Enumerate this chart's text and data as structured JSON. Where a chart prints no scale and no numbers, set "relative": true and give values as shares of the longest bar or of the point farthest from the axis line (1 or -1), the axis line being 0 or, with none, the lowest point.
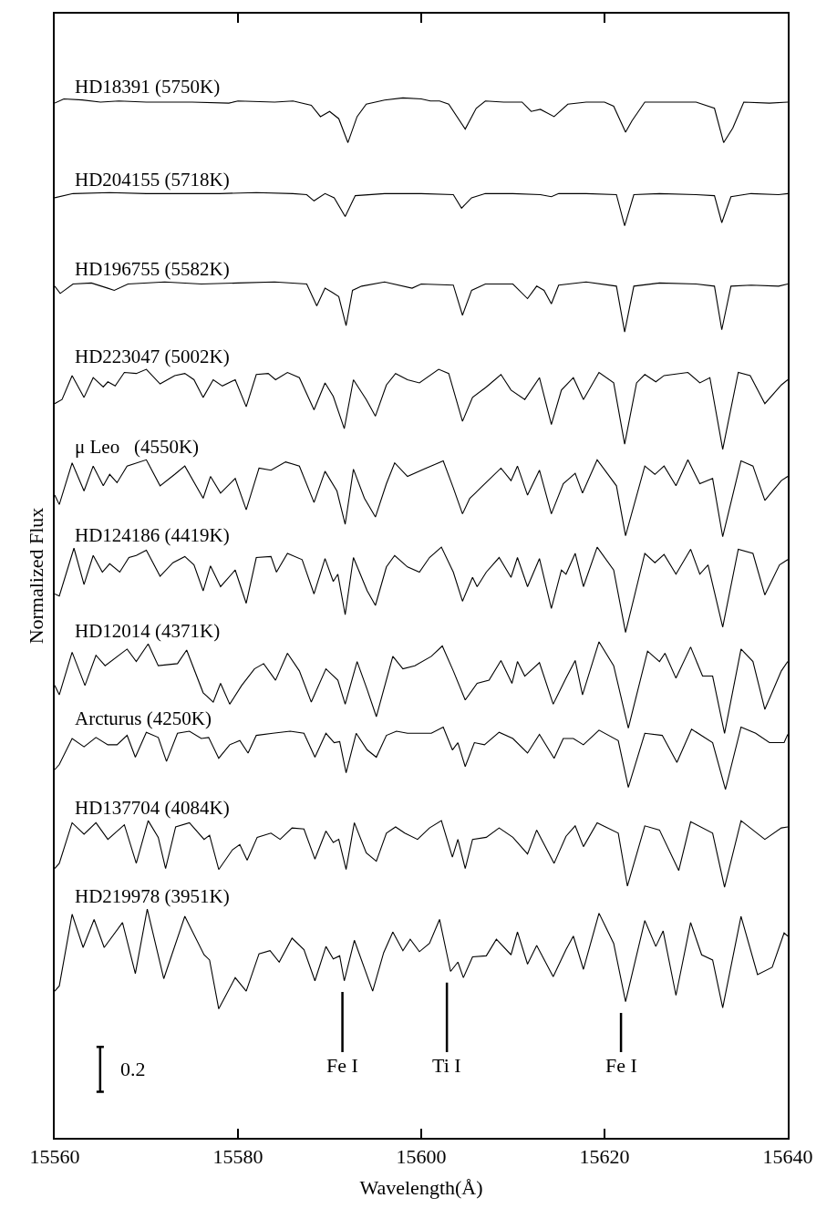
{
  "chart_data": {
    "type": "line",
    "relative": true,
    "xlabel": "Wavelength(Å)",
    "ylabel": "Normalized Flux",
    "xlim": [
      15560,
      15640
    ],
    "xticks": [
      15560,
      15580,
      15600,
      15620,
      15640
    ],
    "tick_labels": "x",
    "legend": false,
    "annotations": [
      "0.2"
    ],
    "ref_lines": [
      {
        "axis": "x",
        "value": 15591.4,
        "label": "Fe I"
      },
      {
        "axis": "x",
        "value": 15602.8,
        "label": "Ti I"
      },
      {
        "axis": "x",
        "value": 15621.8,
        "label": "Fe I"
      }
    ],
    "series": [
      {
        "name": "HD18391 (5750K)",
        "color": "#000000",
        "x": [
          15560,
          15561,
          15563,
          15565,
          15567,
          15570,
          15573,
          15575,
          15579,
          15580,
          15584,
          15586,
          15588,
          15589,
          15590,
          15591,
          15592,
          15593,
          15594,
          15596,
          15598,
          15600,
          15601,
          15602,
          15603,
          15604.8,
          15606,
          15607,
          15609,
          15611,
          15612,
          15613,
          15614.5,
          15616,
          15618,
          15620,
          15621,
          15622.3,
          15623,
          15624.4,
          15627,
          15630,
          15632,
          15633,
          15634,
          15635.2,
          15638,
          15640
        ],
        "values": [
          0.995,
          0.999,
          0.998,
          0.996,
          0.997,
          0.996,
          0.996,
          0.996,
          0.995,
          0.997,
          0.996,
          0.997,
          0.993,
          0.982,
          0.987,
          0.98,
          0.957,
          0.982,
          0.994,
          0.998,
          1.0,
          0.999,
          0.997,
          0.997,
          0.994,
          0.97,
          0.99,
          0.997,
          0.996,
          0.996,
          0.987,
          0.989,
          0.982,
          0.994,
          0.996,
          0.996,
          0.992,
          0.967,
          0.978,
          0.996,
          0.996,
          0.996,
          0.99,
          0.957,
          0.971,
          0.996,
          0.995,
          0.996
        ]
      },
      {
        "name": "HD204155 (5718K)",
        "color": "#000000",
        "x": [
          15560,
          15562,
          15566,
          15570,
          15574,
          15578,
          15582,
          15586,
          15587.5,
          15588.3,
          15589.5,
          15590.5,
          15591.7,
          15592.8,
          15596,
          15600,
          15603.5,
          15604.4,
          15605.5,
          15607,
          15610,
          15613,
          15614.2,
          15615,
          15618,
          15621.3,
          15622.2,
          15623.2,
          15626,
          15630,
          15632,
          15632.8,
          15633.8,
          15636,
          15639,
          15640
        ],
        "values": [
          0.904,
          0.908,
          0.909,
          0.908,
          0.908,
          0.908,
          0.909,
          0.908,
          0.907,
          0.901,
          0.908,
          0.904,
          0.886,
          0.906,
          0.908,
          0.908,
          0.907,
          0.894,
          0.904,
          0.908,
          0.908,
          0.907,
          0.905,
          0.908,
          0.908,
          0.907,
          0.877,
          0.907,
          0.908,
          0.907,
          0.906,
          0.88,
          0.905,
          0.908,
          0.907,
          0.908
        ]
      },
      {
        "name": "HD196755 (5582K)",
        "color": "#000000",
        "x": [
          15560,
          15560.6,
          15562,
          15564,
          15565.8,
          15566.5,
          15568,
          15572,
          15576,
          15580,
          15584,
          15587.5,
          15588.6,
          15589.5,
          15590.3,
          15591,
          15591.8,
          15592.5,
          15593.5,
          15596,
          15599,
          15600,
          15603.5,
          15604.5,
          15605.5,
          15607,
          15610,
          15611.6,
          15612.6,
          15613.4,
          15614.2,
          15615,
          15618,
          15621.3,
          15622.2,
          15623.2,
          15626,
          15630,
          15632,
          15632.8,
          15633.8,
          15636,
          15639,
          15640
        ],
        "values": [
          0.819,
          0.812,
          0.821,
          0.822,
          0.817,
          0.815,
          0.821,
          0.823,
          0.821,
          0.822,
          0.823,
          0.821,
          0.8,
          0.817,
          0.813,
          0.809,
          0.781,
          0.815,
          0.819,
          0.823,
          0.817,
          0.821,
          0.82,
          0.791,
          0.815,
          0.821,
          0.821,
          0.807,
          0.819,
          0.815,
          0.802,
          0.82,
          0.823,
          0.819,
          0.775,
          0.819,
          0.822,
          0.821,
          0.819,
          0.777,
          0.819,
          0.82,
          0.819,
          0.821
        ]
      },
      {
        "name": "HD223047 (5002K)",
        "color": "#000000",
        "x": [
          15560,
          15560.8,
          15561.9,
          15563.2,
          15564.2,
          15565.3,
          15565.8,
          15566.6,
          15567.6,
          15568.9,
          15570,
          15571.5,
          15573.1,
          15574.2,
          15575.2,
          15576.2,
          15577.3,
          15578.3,
          15579.7,
          15580.9,
          15582,
          15583.3,
          15584.1,
          15585.4,
          15586.7,
          15588.3,
          15589.5,
          15590.4,
          15591.6,
          15592.6,
          15594,
          15595,
          15596.2,
          15597.2,
          15598.5,
          15599.8,
          15601.9,
          15603,
          15604.5,
          15605.6,
          15607.1,
          15608.7,
          15609.8,
          15611.3,
          15612.9,
          15614.2,
          15615.3,
          15616.6,
          15617.7,
          15619.4,
          15621,
          15622.2,
          15623.5,
          15624.4,
          15625.6,
          15626.5,
          15629.1,
          15630.4,
          15631.5,
          15632.9,
          15634.6,
          15635.9,
          15637.5,
          15639.3,
          15640
        ],
        "values": [
          0.706,
          0.71,
          0.733,
          0.712,
          0.731,
          0.722,
          0.727,
          0.723,
          0.736,
          0.735,
          0.739,
          0.725,
          0.733,
          0.735,
          0.729,
          0.712,
          0.729,
          0.723,
          0.729,
          0.703,
          0.734,
          0.735,
          0.729,
          0.736,
          0.731,
          0.7,
          0.726,
          0.713,
          0.682,
          0.729,
          0.71,
          0.694,
          0.724,
          0.735,
          0.729,
          0.726,
          0.739,
          0.735,
          0.689,
          0.712,
          0.722,
          0.734,
          0.719,
          0.71,
          0.731,
          0.686,
          0.719,
          0.731,
          0.71,
          0.736,
          0.726,
          0.667,
          0.726,
          0.734,
          0.727,
          0.733,
          0.736,
          0.726,
          0.731,
          0.662,
          0.736,
          0.733,
          0.706,
          0.724,
          0.729
        ]
      },
      {
        "name": "μ Leo   (4550K)",
        "color": "#000000",
        "x": [
          15560,
          15560.5,
          15561.9,
          15563.2,
          15564.2,
          15565.3,
          15566,
          15566.8,
          15567.9,
          15570,
          15571.5,
          15573.1,
          15574.2,
          15576.2,
          15577,
          15578.1,
          15579.7,
          15580.9,
          15582.3,
          15583.6,
          15585.2,
          15586.7,
          15588.3,
          15589.5,
          15590.8,
          15591.7,
          15592.6,
          15593.8,
          15595,
          15596.2,
          15597.1,
          15598.5,
          15600.3,
          15602.4,
          15603.5,
          15604.5,
          15605.3,
          15605.9,
          15606.6,
          15608.7,
          15609.8,
          15610.5,
          15611.6,
          15612.9,
          15614.2,
          15615.5,
          15616.8,
          15617.6,
          15619.2,
          15621.3,
          15622.3,
          15624.4,
          15625.5,
          15626.5,
          15627.8,
          15629.1,
          15630.4,
          15631.8,
          15632.9,
          15634.9,
          15636.2,
          15637.5,
          15639.3,
          15640
        ],
        "values": [
          0.618,
          0.609,
          0.649,
          0.622,
          0.646,
          0.627,
          0.638,
          0.63,
          0.646,
          0.652,
          0.627,
          0.638,
          0.646,
          0.615,
          0.636,
          0.62,
          0.634,
          0.604,
          0.644,
          0.642,
          0.65,
          0.646,
          0.611,
          0.641,
          0.622,
          0.59,
          0.643,
          0.615,
          0.597,
          0.629,
          0.649,
          0.636,
          0.643,
          0.651,
          0.625,
          0.6,
          0.615,
          0.62,
          0.626,
          0.644,
          0.632,
          0.646,
          0.618,
          0.642,
          0.6,
          0.629,
          0.639,
          0.62,
          0.652,
          0.627,
          0.579,
          0.646,
          0.638,
          0.646,
          0.627,
          0.652,
          0.629,
          0.634,
          0.578,
          0.651,
          0.646,
          0.613,
          0.632,
          0.636
        ]
      },
      {
        "name": "HD124186 (4419K)",
        "color": "#000000",
        "x": [
          15560,
          15560.5,
          15562.1,
          15563.2,
          15564.2,
          15565.2,
          15566,
          15567.1,
          15568.1,
          15568.9,
          15570,
          15571.5,
          15572.9,
          15574.2,
          15575.2,
          15576.2,
          15577,
          15578.1,
          15579.7,
          15580.9,
          15582,
          15583.6,
          15584.2,
          15585.4,
          15587,
          15588.3,
          15589.5,
          15590.4,
          15590.9,
          15591.7,
          15592.6,
          15594.1,
          15595,
          15596.2,
          15597.1,
          15598.5,
          15599.8,
          15600.9,
          15602.2,
          15603.5,
          15604.5,
          15605.6,
          15606.1,
          15607.1,
          15608.5,
          15609.8,
          15610.5,
          15611.6,
          15612.9,
          15614.2,
          15615.3,
          15615.8,
          15616.8,
          15617.7,
          15619.2,
          15621,
          15622.3,
          15624.4,
          15625.5,
          15626.5,
          15627.8,
          15629.4,
          15630.4,
          15631.3,
          15632.9,
          15634.6,
          15636.2,
          15637.5,
          15639.1,
          15640
        ],
        "values": [
          0.523,
          0.521,
          0.567,
          0.532,
          0.56,
          0.544,
          0.552,
          0.544,
          0.558,
          0.56,
          0.565,
          0.54,
          0.553,
          0.559,
          0.551,
          0.526,
          0.55,
          0.53,
          0.546,
          0.514,
          0.558,
          0.559,
          0.544,
          0.562,
          0.556,
          0.523,
          0.557,
          0.535,
          0.542,
          0.503,
          0.558,
          0.526,
          0.512,
          0.549,
          0.56,
          0.549,
          0.544,
          0.558,
          0.568,
          0.544,
          0.516,
          0.539,
          0.53,
          0.544,
          0.558,
          0.539,
          0.558,
          0.53,
          0.557,
          0.509,
          0.546,
          0.542,
          0.562,
          0.53,
          0.568,
          0.546,
          0.486,
          0.562,
          0.553,
          0.561,
          0.542,
          0.566,
          0.542,
          0.551,
          0.491,
          0.566,
          0.562,
          0.522,
          0.551,
          0.556
        ]
      },
      {
        "name": "HD12014 (4371K)",
        "color": "#000000",
        "x": [
          15560,
          15560.5,
          15561.9,
          15563.3,
          15564.5,
          15565.5,
          15567.9,
          15568.9,
          15570.2,
          15571.3,
          15573.4,
          15574.4,
          15576.2,
          15577.3,
          15578.1,
          15579.1,
          15580.4,
          15581.8,
          15582.8,
          15584.1,
          15585.4,
          15586.7,
          15588,
          15589.6,
          15590.9,
          15591.7,
          15593,
          15594.1,
          15595.1,
          15596.9,
          15598,
          15599.3,
          15601.1,
          15602.3,
          15603.5,
          15604.8,
          15606.1,
          15607.4,
          15608.7,
          15609.9,
          15610.5,
          15611.3,
          15612.9,
          15614.4,
          15615.8,
          15616.8,
          15617.6,
          15619.4,
          15621,
          15622.6,
          15624.7,
          15626,
          15626.6,
          15627.8,
          15629.4,
          15630.7,
          15631.8,
          15633.1,
          15634.9,
          15636.2,
          15637.5,
          15639.3,
          15640
        ],
        "values": [
          0.435,
          0.426,
          0.467,
          0.435,
          0.464,
          0.454,
          0.47,
          0.458,
          0.475,
          0.454,
          0.456,
          0.469,
          0.428,
          0.419,
          0.437,
          0.417,
          0.435,
          0.451,
          0.456,
          0.44,
          0.466,
          0.449,
          0.419,
          0.451,
          0.44,
          0.417,
          0.458,
          0.431,
          0.405,
          0.463,
          0.451,
          0.454,
          0.463,
          0.473,
          0.449,
          0.421,
          0.437,
          0.44,
          0.459,
          0.437,
          0.458,
          0.444,
          0.457,
          0.417,
          0.442,
          0.459,
          0.426,
          0.477,
          0.454,
          0.394,
          0.468,
          0.458,
          0.466,
          0.442,
          0.472,
          0.444,
          0.444,
          0.389,
          0.47,
          0.458,
          0.412,
          0.449,
          0.458
        ]
      },
      {
        "name": "Arcturus (4250K)",
        "color": "#000000",
        "x": [
          15560,
          15560.5,
          15561.9,
          15563.2,
          15564.5,
          15565.8,
          15566.8,
          15567.9,
          15568.8,
          15570,
          15571.3,
          15572.2,
          15573.4,
          15574.7,
          15576,
          15576.8,
          15577.9,
          15579.1,
          15580.2,
          15581.1,
          15582,
          15583.8,
          15585.7,
          15587.2,
          15588.4,
          15589.6,
          15590.5,
          15591.1,
          15591.8,
          15592.9,
          15594.1,
          15595.1,
          15596.2,
          15597.3,
          15598.5,
          15599.8,
          15601.1,
          15602.4,
          15603.4,
          15604,
          15604.8,
          15605.8,
          15606.9,
          15608.5,
          15610,
          15611.6,
          15612.9,
          15614.5,
          15615.5,
          15616.6,
          15617.7,
          15619.4,
          15621.5,
          15622.6,
          15624.4,
          15626.3,
          15627.9,
          15629.5,
          15631.8,
          15633.2,
          15634.9,
          15636.5,
          15638,
          15639.6,
          15640
        ],
        "values": [
          0.354,
          0.359,
          0.384,
          0.376,
          0.385,
          0.378,
          0.378,
          0.387,
          0.366,
          0.39,
          0.385,
          0.362,
          0.389,
          0.391,
          0.384,
          0.385,
          0.365,
          0.378,
          0.382,
          0.37,
          0.387,
          0.389,
          0.391,
          0.389,
          0.366,
          0.389,
          0.38,
          0.381,
          0.351,
          0.389,
          0.373,
          0.366,
          0.387,
          0.391,
          0.389,
          0.389,
          0.389,
          0.395,
          0.373,
          0.38,
          0.357,
          0.38,
          0.378,
          0.39,
          0.384,
          0.37,
          0.388,
          0.365,
          0.384,
          0.384,
          0.378,
          0.392,
          0.382,
          0.337,
          0.389,
          0.387,
          0.361,
          0.393,
          0.38,
          0.335,
          0.395,
          0.389,
          0.38,
          0.38,
          0.388
        ]
      },
      {
        "name": "HD137704 (4084K)",
        "color": "#000000",
        "x": [
          15560,
          15560.5,
          15561.9,
          15563.2,
          15564.5,
          15565.8,
          15567.6,
          15568.9,
          15570.2,
          15571.3,
          15572.1,
          15573.2,
          15574.7,
          15576.3,
          15576.9,
          15577.9,
          15579.4,
          15580.2,
          15581,
          15582.1,
          15583.6,
          15584.6,
          15585.9,
          15587.2,
          15588.4,
          15589.6,
          15590.4,
          15591,
          15591.8,
          15592.7,
          15594,
          15595.1,
          15596.2,
          15597.2,
          15598.2,
          15599.6,
          15600.9,
          15602.2,
          15603.4,
          15604,
          15604.8,
          15605.6,
          15607.1,
          15608.5,
          15610,
          15611.6,
          15612.6,
          15614.5,
          15615.8,
          15616.8,
          15617.7,
          15619.2,
          15621.5,
          15622.5,
          15624.4,
          15626,
          15628.1,
          15629.4,
          15631.8,
          15633.1,
          15634.9,
          15637.5,
          15639.3,
          15640
        ],
        "values": [
          0.259,
          0.264,
          0.303,
          0.292,
          0.303,
          0.287,
          0.301,
          0.264,
          0.305,
          0.289,
          0.259,
          0.299,
          0.303,
          0.287,
          0.291,
          0.258,
          0.277,
          0.282,
          0.267,
          0.289,
          0.293,
          0.287,
          0.298,
          0.297,
          0.268,
          0.295,
          0.284,
          0.287,
          0.258,
          0.303,
          0.274,
          0.266,
          0.293,
          0.299,
          0.293,
          0.287,
          0.298,
          0.305,
          0.27,
          0.287,
          0.259,
          0.287,
          0.289,
          0.298,
          0.289,
          0.273,
          0.296,
          0.264,
          0.29,
          0.3,
          0.28,
          0.303,
          0.293,
          0.242,
          0.3,
          0.296,
          0.257,
          0.304,
          0.293,
          0.241,
          0.305,
          0.287,
          0.298,
          0.299
        ]
      },
      {
        "name": "HD219978 (3951K)",
        "color": "#000000",
        "x": [
          15560,
          15560.5,
          15561.9,
          15563.1,
          15564.3,
          15565.4,
          15567.4,
          15568.8,
          15570.1,
          15571.9,
          15574.2,
          15576.3,
          15576.9,
          15577.9,
          15579.7,
          15580.9,
          15582.3,
          15583.5,
          15584.5,
          15585.9,
          15587.2,
          15588.4,
          15589.6,
          15590.4,
          15591.1,
          15591.6,
          15592.7,
          15594.7,
          15595.9,
          15596.9,
          15598,
          15598.8,
          15599.8,
          15600.9,
          15602,
          15603.2,
          15604,
          15604.6,
          15605.6,
          15607.1,
          15608.2,
          15609.8,
          15610.5,
          15611.6,
          15612.6,
          15614.4,
          15615.8,
          15616.6,
          15617.7,
          15619.4,
          15621,
          15622.3,
          15624.4,
          15625.6,
          15626.4,
          15627.8,
          15629.4,
          15630.6,
          15631.8,
          15632.9,
          15634.9,
          15636.7,
          15638.3,
          15639.6,
          15640
        ],
        "values": [
          0.141,
          0.146,
          0.215,
          0.183,
          0.21,
          0.183,
          0.207,
          0.158,
          0.22,
          0.153,
          0.213,
          0.176,
          0.171,
          0.124,
          0.154,
          0.141,
          0.177,
          0.18,
          0.169,
          0.192,
          0.181,
          0.151,
          0.184,
          0.172,
          0.175,
          0.151,
          0.19,
          0.141,
          0.178,
          0.198,
          0.18,
          0.191,
          0.179,
          0.187,
          0.21,
          0.16,
          0.169,
          0.154,
          0.174,
          0.175,
          0.191,
          0.176,
          0.198,
          0.167,
          0.185,
          0.155,
          0.181,
          0.194,
          0.162,
          0.216,
          0.187,
          0.131,
          0.209,
          0.184,
          0.199,
          0.137,
          0.207,
          0.176,
          0.171,
          0.125,
          0.213,
          0.157,
          0.164,
          0.197,
          0.194
        ]
      }
    ]
  }
}
